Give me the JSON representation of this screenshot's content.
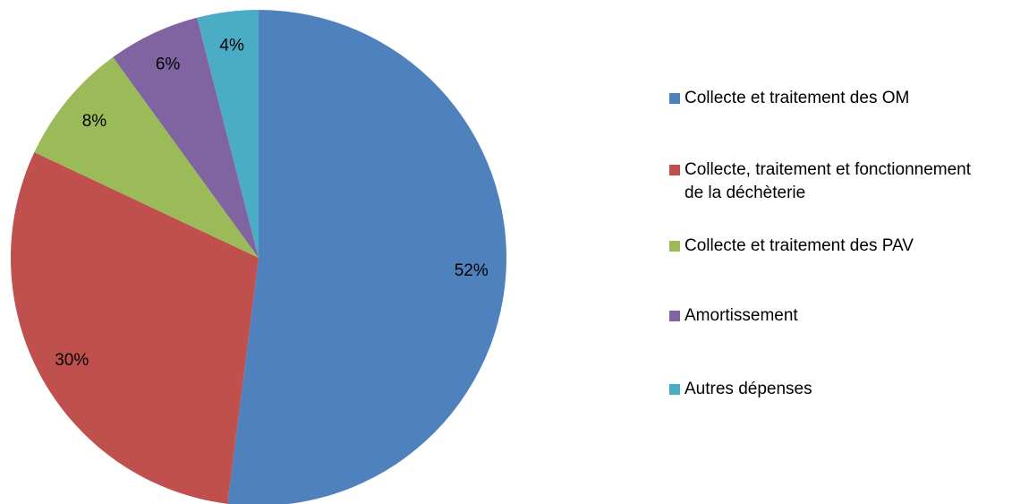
{
  "chart_data": {
    "type": "pie",
    "categories": [
      "Collecte et traitement des OM",
      "Collecte, traitement et fonctionnement de la déchèterie",
      "Collecte et traitement des PAV",
      "Amortissement",
      "Autres dépenses"
    ],
    "values": [
      52,
      30,
      8,
      6,
      4
    ],
    "value_labels": [
      "52%",
      "30%",
      "8%",
      "6%",
      "4%"
    ],
    "colors": [
      "#4f81bd",
      "#c0504d",
      "#9bbb59",
      "#8064a2",
      "#4bacc6"
    ],
    "legend": "right"
  }
}
